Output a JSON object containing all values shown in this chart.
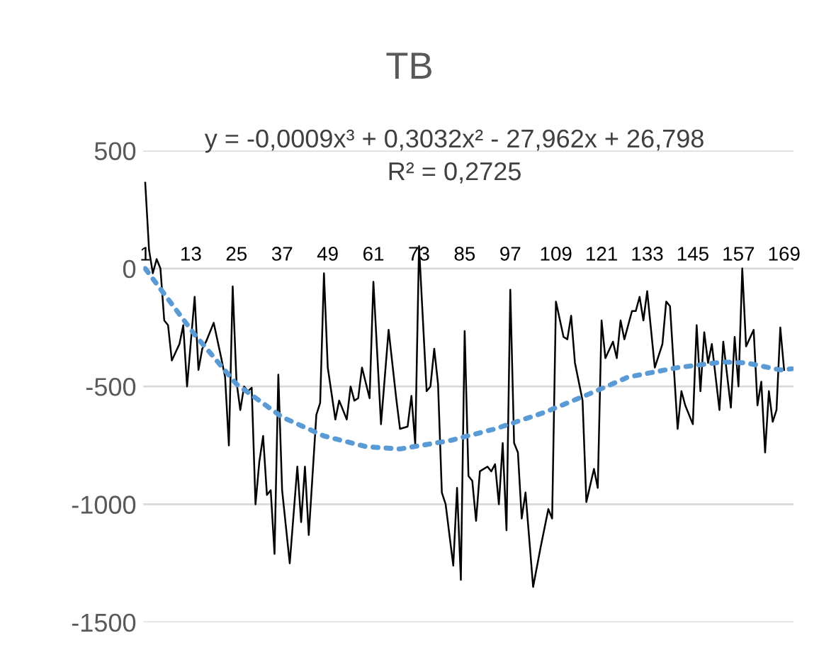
{
  "chart_data": {
    "type": "line",
    "title": "TB",
    "annotations": [
      "y = -0,0009x³ + 0,3032x² - 27,962x + 26,798",
      "R² = 0,2725"
    ],
    "xlim": [
      0.5,
      171.5
    ],
    "xticks": [
      1,
      13,
      25,
      37,
      49,
      61,
      73,
      85,
      97,
      109,
      121,
      133,
      145,
      157,
      169
    ],
    "ylim": [
      -1500,
      500
    ],
    "yticks": [
      -1500,
      -1000,
      -500,
      0,
      500
    ],
    "grid": "y",
    "legend": false,
    "series": [
      {
        "color": "#000000",
        "line_style": "solid",
        "x": [
          1,
          2,
          3,
          4,
          5,
          6,
          7,
          8,
          10,
          11,
          12,
          14,
          15,
          16,
          17,
          19,
          21,
          22,
          23,
          24,
          25,
          26,
          27,
          28,
          29,
          30,
          31,
          32,
          33,
          34,
          35,
          36,
          37,
          39,
          41,
          42,
          43,
          44,
          46,
          47,
          48,
          49,
          51,
          52,
          54,
          55,
          56,
          57,
          58,
          60,
          61,
          63,
          65,
          67,
          68,
          70,
          71,
          72,
          73,
          75,
          76,
          77,
          78,
          79,
          80,
          82,
          83,
          84,
          85,
          86,
          87,
          88,
          89,
          91,
          92,
          93,
          94,
          95,
          96,
          97,
          98,
          99,
          100,
          101,
          103,
          105,
          107,
          108,
          109,
          111,
          112,
          113,
          114,
          116,
          117,
          119,
          120,
          121,
          122,
          124,
          125,
          126,
          127,
          129,
          130,
          131,
          132,
          133,
          135,
          137,
          138,
          139,
          141,
          142,
          143,
          145,
          146,
          147,
          148,
          149,
          150,
          152,
          153,
          155,
          156,
          157,
          158,
          159,
          161,
          162,
          163,
          164,
          165,
          166,
          167,
          168,
          169
        ],
        "values": [
          364,
          80,
          -20,
          40,
          0,
          -220,
          -240,
          -390,
          -320,
          -240,
          -500,
          -120,
          -430,
          -340,
          -310,
          -230,
          -380,
          -460,
          -750,
          -76,
          -480,
          -600,
          -500,
          -520,
          -505,
          -1000,
          -820,
          -710,
          -960,
          -940,
          -1210,
          -450,
          -940,
          -1250,
          -840,
          -1075,
          -840,
          -1130,
          -620,
          -570,
          -20,
          -420,
          -640,
          -560,
          -640,
          -500,
          -560,
          -550,
          -420,
          -550,
          -56,
          -660,
          -260,
          -550,
          -680,
          -670,
          -540,
          -745,
          96,
          -520,
          -500,
          -340,
          -490,
          -950,
          -1000,
          -1260,
          -930,
          -1320,
          -265,
          -880,
          -900,
          -1070,
          -860,
          -840,
          -860,
          -830,
          -1000,
          -740,
          -1110,
          -90,
          -740,
          -780,
          -1060,
          -950,
          -1350,
          -1180,
          -1020,
          -1060,
          -140,
          -290,
          -300,
          -200,
          -400,
          -560,
          -990,
          -850,
          -930,
          -220,
          -380,
          -310,
          -380,
          -220,
          -300,
          -180,
          -180,
          -120,
          -220,
          -96,
          -420,
          -320,
          -140,
          -160,
          -680,
          -520,
          -580,
          -660,
          -240,
          -520,
          -270,
          -400,
          -320,
          -600,
          -310,
          -590,
          -290,
          -500,
          0,
          -330,
          -260,
          -580,
          -480,
          -780,
          -520,
          -650,
          -600,
          -250,
          -430
        ]
      },
      {
        "color": "#5b9bd5",
        "line_style": "dotted",
        "x": [
          1,
          14,
          25,
          37,
          48,
          59,
          68,
          81,
          93,
          106,
          118,
          128,
          141,
          153,
          159,
          168,
          171
        ],
        "values": [
          0,
          -280,
          -490,
          -630,
          -710,
          -755,
          -765,
          -730,
          -680,
          -610,
          -530,
          -460,
          -420,
          -396,
          -400,
          -430,
          -425
        ]
      }
    ]
  }
}
